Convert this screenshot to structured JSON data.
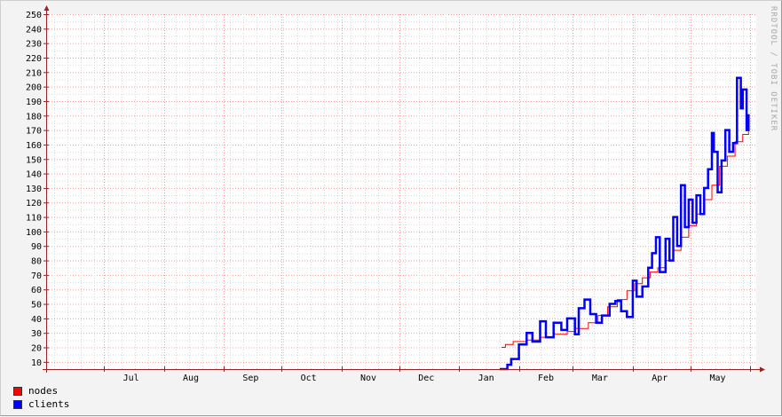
{
  "watermark": "RRDTOOL / TOBI OETIKER",
  "legend": [
    {
      "label": "nodes",
      "color": "#ff0000"
    },
    {
      "label": "clients",
      "color": "#0000ff"
    }
  ],
  "colors": {
    "grid_minor": "#d9d9d9",
    "grid_major": "#ff9999",
    "axis": "#9a2222",
    "plot_bg": "#ffffff"
  },
  "chart_data": {
    "type": "line",
    "title": "",
    "xlabel": "",
    "ylabel": "",
    "ylim": [
      5,
      250
    ],
    "yticks": [
      10,
      20,
      30,
      40,
      50,
      60,
      70,
      80,
      90,
      100,
      110,
      120,
      130,
      140,
      150,
      160,
      170,
      180,
      190,
      200,
      210,
      220,
      230,
      240,
      250
    ],
    "xlim": [
      "2016-06-01",
      "2017-06-04"
    ],
    "xtick_labels": [
      {
        "label": "Jul",
        "at": "2016-07-15"
      },
      {
        "label": "Aug",
        "at": "2016-08-15"
      },
      {
        "label": "Sep",
        "at": "2016-09-15"
      },
      {
        "label": "Oct",
        "at": "2016-10-15"
      },
      {
        "label": "Nov",
        "at": "2016-11-15"
      },
      {
        "label": "Dec",
        "at": "2016-12-15"
      },
      {
        "label": "Jan",
        "at": "2017-01-15"
      },
      {
        "label": "Feb",
        "at": "2017-02-15"
      },
      {
        "label": "Mar",
        "at": "2017-03-15"
      },
      {
        "label": "Apr",
        "at": "2017-04-15"
      },
      {
        "label": "May",
        "at": "2017-05-15"
      }
    ],
    "month_boundaries": [
      "2016-07-01",
      "2016-08-01",
      "2016-09-01",
      "2016-10-01",
      "2016-11-01",
      "2016-12-01",
      "2017-01-01",
      "2017-02-01",
      "2017-03-01",
      "2017-04-01",
      "2017-05-01",
      "2017-06-01"
    ],
    "grid": true,
    "legend_position": "bottom-left",
    "series": [
      {
        "name": "nodes",
        "color": "#ff0000",
        "stroke": 1,
        "points": [
          [
            "2017-01-23",
            20
          ],
          [
            "2017-01-25",
            22
          ],
          [
            "2017-01-29",
            24
          ],
          [
            "2017-02-05",
            25
          ],
          [
            "2017-02-12",
            27
          ],
          [
            "2017-02-19",
            29
          ],
          [
            "2017-02-26",
            31
          ],
          [
            "2017-03-02",
            33
          ],
          [
            "2017-03-09",
            37
          ],
          [
            "2017-03-14",
            42
          ],
          [
            "2017-03-19",
            48
          ],
          [
            "2017-03-24",
            53
          ],
          [
            "2017-03-29",
            59
          ],
          [
            "2017-04-02",
            64
          ],
          [
            "2017-04-06",
            68
          ],
          [
            "2017-04-10",
            72
          ],
          [
            "2017-04-14",
            75
          ],
          [
            "2017-04-18",
            80
          ],
          [
            "2017-04-22",
            87
          ],
          [
            "2017-04-26",
            96
          ],
          [
            "2017-04-30",
            104
          ],
          [
            "2017-05-04",
            112
          ],
          [
            "2017-05-08",
            122
          ],
          [
            "2017-05-12",
            132
          ],
          [
            "2017-05-16",
            145
          ],
          [
            "2017-05-20",
            152
          ],
          [
            "2017-05-24",
            162
          ],
          [
            "2017-05-28",
            167
          ],
          [
            "2017-05-31",
            169
          ]
        ]
      },
      {
        "name": "clients",
        "color": "#0000ff",
        "stroke": 2.5,
        "points": [
          [
            "2017-01-22",
            5
          ],
          [
            "2017-01-23",
            5
          ],
          [
            "2017-01-26",
            8
          ],
          [
            "2017-01-28",
            12
          ],
          [
            "2017-02-01",
            22
          ],
          [
            "2017-02-05",
            30
          ],
          [
            "2017-02-08",
            24
          ],
          [
            "2017-02-12",
            38
          ],
          [
            "2017-02-15",
            27
          ],
          [
            "2017-02-19",
            37
          ],
          [
            "2017-02-23",
            32
          ],
          [
            "2017-02-26",
            40
          ],
          [
            "2017-03-02",
            29
          ],
          [
            "2017-03-04",
            47
          ],
          [
            "2017-03-07",
            53
          ],
          [
            "2017-03-10",
            43
          ],
          [
            "2017-03-13",
            37
          ],
          [
            "2017-03-16",
            42
          ],
          [
            "2017-03-20",
            50
          ],
          [
            "2017-03-23",
            52
          ],
          [
            "2017-03-26",
            45
          ],
          [
            "2017-03-29",
            41
          ],
          [
            "2017-04-01",
            66
          ],
          [
            "2017-04-03",
            55
          ],
          [
            "2017-04-06",
            62
          ],
          [
            "2017-04-09",
            75
          ],
          [
            "2017-04-11",
            85
          ],
          [
            "2017-04-13",
            96
          ],
          [
            "2017-04-15",
            72
          ],
          [
            "2017-04-18",
            95
          ],
          [
            "2017-04-20",
            80
          ],
          [
            "2017-04-22",
            110
          ],
          [
            "2017-04-24",
            90
          ],
          [
            "2017-04-26",
            132
          ],
          [
            "2017-04-28",
            103
          ],
          [
            "2017-04-30",
            122
          ],
          [
            "2017-05-02",
            106
          ],
          [
            "2017-05-04",
            125
          ],
          [
            "2017-05-06",
            112
          ],
          [
            "2017-05-08",
            130
          ],
          [
            "2017-05-10",
            143
          ],
          [
            "2017-05-12",
            168
          ],
          [
            "2017-05-13",
            155
          ],
          [
            "2017-05-15",
            127
          ],
          [
            "2017-05-17",
            149
          ],
          [
            "2017-05-19",
            170
          ],
          [
            "2017-05-21",
            155
          ],
          [
            "2017-05-23",
            161
          ],
          [
            "2017-05-25",
            206
          ],
          [
            "2017-05-27",
            185
          ],
          [
            "2017-05-28",
            198
          ],
          [
            "2017-05-30",
            170
          ],
          [
            "2017-05-31",
            181
          ]
        ]
      }
    ]
  }
}
